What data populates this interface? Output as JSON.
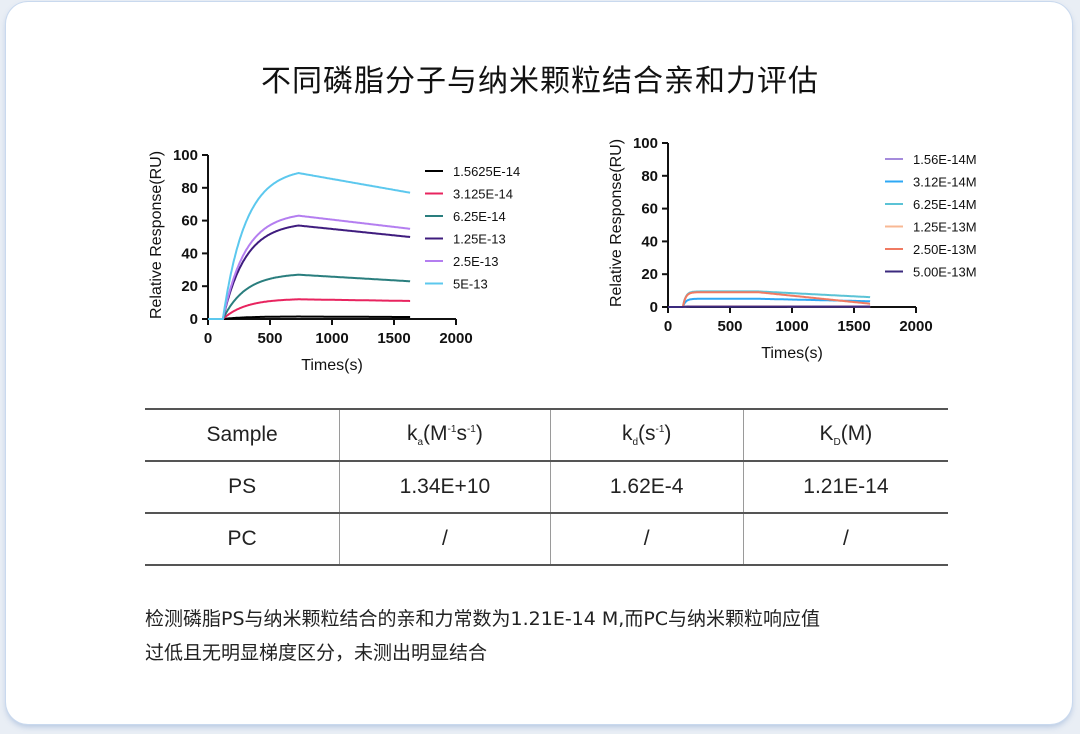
{
  "page": {
    "title": "不同磷脂分子与纳米颗粒结合亲和力评估"
  },
  "chart_data": [
    {
      "type": "line",
      "title": "",
      "xlabel": "Times(s)",
      "ylabel": "Relative Response(RU)",
      "xlim": [
        0,
        2000
      ],
      "ylim": [
        0,
        100
      ],
      "xticks": [
        0,
        500,
        1000,
        1500,
        2000
      ],
      "yticks": [
        0,
        20,
        40,
        60,
        80,
        100
      ],
      "assoc_start": 120,
      "dissoc_start": 730,
      "end": 1630,
      "legend_position": "right",
      "series": [
        {
          "name": "1.5625E-14",
          "color": "#000000",
          "plateau": 1.5,
          "end_value": 1.2
        },
        {
          "name": "3.125E-14",
          "color": "#e8245f",
          "plateau": 12,
          "end_value": 11
        },
        {
          "name": "6.25E-14",
          "color": "#2a7e7e",
          "plateau": 27,
          "end_value": 23
        },
        {
          "name": "1.25E-13",
          "color": "#3f1c7e",
          "plateau": 57,
          "end_value": 50
        },
        {
          "name": "2.5E-13",
          "color": "#b47ef0",
          "plateau": 63,
          "end_value": 55
        },
        {
          "name": "5E-13",
          "color": "#5cc8ee",
          "plateau": 89,
          "end_value": 77
        }
      ]
    },
    {
      "type": "line",
      "title": "",
      "xlabel": "Times(s)",
      "ylabel": "Relative Response(RU)",
      "xlim": [
        0,
        2000
      ],
      "ylim": [
        0,
        100
      ],
      "xticks": [
        0,
        500,
        1000,
        1500,
        2000
      ],
      "yticks": [
        0,
        20,
        40,
        60,
        80,
        100
      ],
      "assoc_start": 120,
      "dissoc_start": 730,
      "end": 1630,
      "legend_position": "right",
      "series": [
        {
          "name": "1.56E-14M",
          "color": "#a58bdc",
          "plateau": 0.5,
          "end_value": 0.4
        },
        {
          "name": "3.12E-14M",
          "color": "#2ea8f5",
          "plateau": 5,
          "end_value": 3.5
        },
        {
          "name": "6.25E-14M",
          "color": "#5bc3d6",
          "plateau": 9.5,
          "end_value": 6
        },
        {
          "name": "1.25E-13M",
          "color": "#f8b894",
          "plateau": 0.3,
          "end_value": 0.2
        },
        {
          "name": "2.50E-13M",
          "color": "#f07a62",
          "plateau": 9,
          "end_value": 2
        },
        {
          "name": "5.00E-13M",
          "color": "#3b2a7e",
          "plateau": 0.2,
          "end_value": 0.1
        }
      ]
    }
  ],
  "table": {
    "headers": {
      "sample": "Sample",
      "ka_k": "k",
      "ka_sub": "a",
      "ka_unit_open": "(M",
      "ka_sup1": "-1",
      "ka_mid": "s",
      "ka_sup2": "-1",
      "ka_close": ")",
      "kd_k": "k",
      "kd_sub": "d",
      "kd_open": "(s",
      "kd_sup": "-1",
      "kd_close": ")",
      "KD_k": "K",
      "KD_sub": "D",
      "KD_unit": "(M)"
    },
    "rows": [
      {
        "sample": "PS",
        "ka": "1.34E+10",
        "kd": "1.62E-4",
        "KD": "1.21E-14"
      },
      {
        "sample": "PC",
        "ka": "/",
        "kd": "/",
        "KD": "/"
      }
    ]
  },
  "note": {
    "line1": "检测磷脂PS与纳米颗粒结合的亲和力常数为1.21E-14 M,而PC与纳米颗粒响应值",
    "line2": "过低且无明显梯度区分，未测出明显结合"
  }
}
